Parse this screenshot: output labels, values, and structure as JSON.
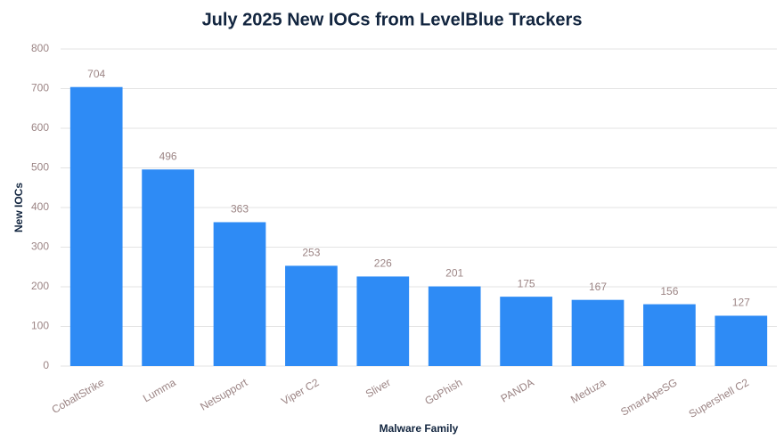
{
  "chart_data": {
    "type": "bar",
    "title": "July 2025 New IOCs from LevelBlue Trackers",
    "x_label": "Malware Family",
    "y_label": "New IOCs",
    "categories": [
      "CobaltStrike",
      "Lumma",
      "Netsupport",
      "Viper C2",
      "Sliver",
      "GoPhish",
      "PANDA",
      "Meduza",
      "SmartApeSG",
      "Supershell C2"
    ],
    "values": [
      704,
      496,
      363,
      253,
      226,
      201,
      175,
      167,
      156,
      127
    ],
    "color": "#2e8bf5",
    "ylim": [
      0,
      800
    ],
    "yticks": [
      0,
      100,
      200,
      300,
      400,
      500,
      600,
      700,
      800
    ],
    "grid": true
  }
}
